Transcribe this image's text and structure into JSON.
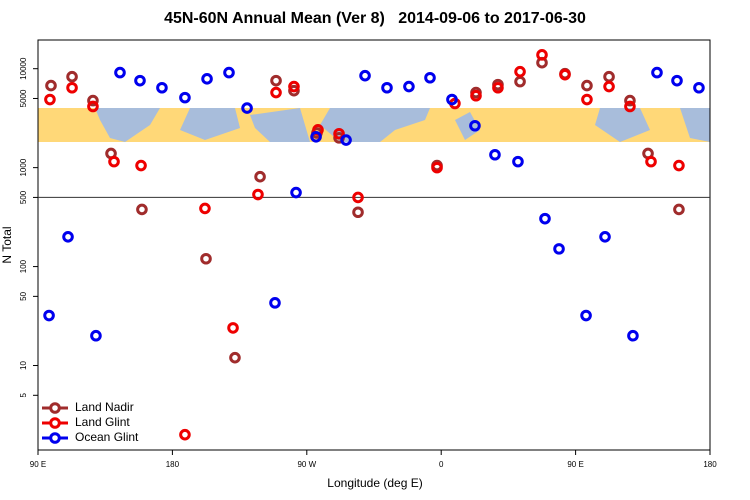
{
  "chart_data": {
    "type": "scatter",
    "title": "45N-60N Annual Mean (Ver 8)   2014-09-06 to 2017-06-30",
    "xlabel": "Longitude (deg E)",
    "ylabel": "N Total",
    "xlim": [
      90,
      540
    ],
    "ylim": [
      1.4,
      19500
    ],
    "log_y": true,
    "xticks": [
      {
        "value": 90,
        "label": "90 E"
      },
      180,
      {
        "value": 270,
        "label": "90 W"
      },
      {
        "value": 360,
        "label": "0"
      },
      {
        "value": 450,
        "label": "90 E"
      },
      {
        "value": 540,
        "label": "180"
      }
    ],
    "yticks": [
      5,
      10,
      50,
      100,
      500,
      1000,
      5000,
      10000
    ],
    "hline": 500,
    "legend": "bottom-left",
    "series": [
      {
        "name": "Land Nadir",
        "color": "#a02c2c",
        "x": [
          98.7,
          112.8,
          126.8,
          138.9,
          159.6,
          202.5,
          221.9,
          238.7,
          249.4,
          261.4,
          276.8,
          291.6,
          304.3,
          357.2,
          383.3,
          398,
          412.8,
          427.5,
          442.9,
          457.6,
          472.4,
          486.4,
          498.5,
          519.2
        ],
        "values": [
          6750,
          8300,
          4760,
          1390,
          378,
          120,
          12,
          810,
          7570,
          6000,
          2240,
          2000,
          354,
          1050,
          5740,
          6900,
          7400,
          11500,
          8900,
          6750,
          8300,
          4760,
          1390,
          378
        ]
      },
      {
        "name": "Land Glint",
        "color": "#ee0000",
        "x": [
          98,
          112.8,
          126.8,
          140.9,
          159,
          188.4,
          201.8,
          220.6,
          237.3,
          249.4,
          261.4,
          277.5,
          291.6,
          304.3,
          357.2,
          369.2,
          383.3,
          398,
          412.8,
          427.5,
          442.9,
          457.6,
          472.4,
          486.4,
          500.5,
          519.2
        ],
        "values": [
          4880,
          6420,
          4150,
          1150,
          1050,
          2,
          387,
          24,
          535,
          5740,
          6600,
          2410,
          2200,
          500,
          1000,
          4450,
          5330,
          6420,
          9330,
          13800,
          8700,
          4880,
          6600,
          4150,
          1150,
          1050
        ]
      },
      {
        "name": "Ocean Glint",
        "color": "#0000ee",
        "x": [
          97.4,
          110.1,
          128.8,
          144.9,
          158.3,
          173,
          188.4,
          203.2,
          217.9,
          230,
          248.7,
          262.8,
          276.2,
          296.3,
          309,
          323.7,
          338.4,
          352.5,
          367.2,
          382.6,
          396,
          411.4,
          429.5,
          438.9,
          457,
          469.7,
          488.4,
          504.5,
          517.9,
          532.6
        ],
        "values": [
          32,
          200,
          20,
          9130,
          7570,
          6420,
          5100,
          7900,
          9130,
          4000,
          43,
          560,
          2050,
          1900,
          8500,
          6420,
          6600,
          8100,
          4880,
          2650,
          1350,
          1150,
          305,
          151,
          32,
          200,
          20,
          9130,
          7570,
          6420
        ]
      }
    ]
  }
}
